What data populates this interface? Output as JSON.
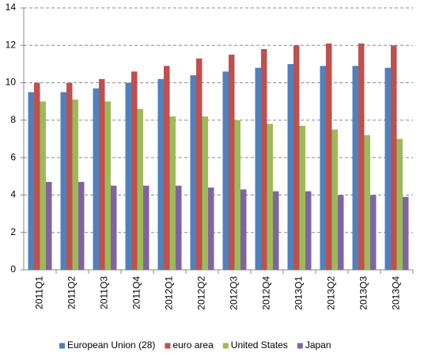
{
  "chart_data": {
    "type": "bar",
    "categories": [
      "2011Q1",
      "2011Q2",
      "2011Q3",
      "2011Q4",
      "2012Q1",
      "2012Q2",
      "2012Q3",
      "2012Q4",
      "2013Q1",
      "2013Q2",
      "2013Q3",
      "2013Q4"
    ],
    "series": [
      {
        "name": "European Union (28)",
        "color": "#4f81bd",
        "values": [
          9.5,
          9.5,
          9.7,
          10.0,
          10.2,
          10.4,
          10.6,
          10.8,
          11.0,
          10.9,
          10.9,
          10.8
        ]
      },
      {
        "name": "euro area",
        "color": "#c0504d",
        "values": [
          10.0,
          10.0,
          10.2,
          10.6,
          10.9,
          11.3,
          11.5,
          11.8,
          12.0,
          12.1,
          12.1,
          12.0
        ]
      },
      {
        "name": "United States",
        "color": "#9bbb59",
        "values": [
          9.0,
          9.1,
          9.0,
          8.6,
          8.2,
          8.2,
          8.0,
          7.8,
          7.7,
          7.5,
          7.2,
          7.0
        ]
      },
      {
        "name": "Japan",
        "color": "#8064a2",
        "values": [
          4.7,
          4.7,
          4.5,
          4.5,
          4.5,
          4.4,
          4.3,
          4.2,
          4.2,
          4.0,
          4.0,
          3.9
        ]
      }
    ],
    "ylim": [
      0,
      14
    ],
    "yticks": [
      0,
      2,
      4,
      6,
      8,
      10,
      12,
      14
    ],
    "grid": true,
    "legend": "bottom"
  }
}
